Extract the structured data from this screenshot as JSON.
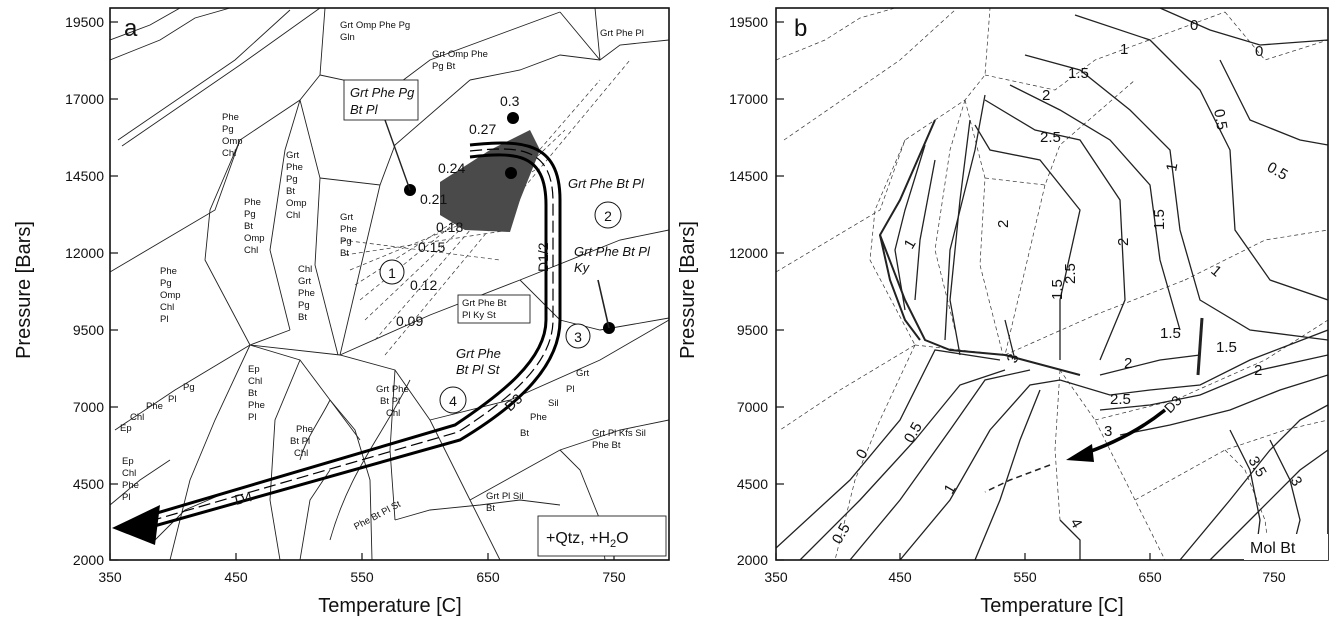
{
  "panels": [
    {
      "id": "a",
      "label": "a"
    },
    {
      "id": "b",
      "label": "b"
    }
  ],
  "axes": {
    "xlabel": "Temperature [C]",
    "ylabel": "Pressure [Bars]",
    "x_ticks": [
      "350",
      "450",
      "550",
      "650",
      "750"
    ],
    "y_ticks": [
      "19500",
      "17000",
      "14500",
      "12000",
      "9500",
      "7000",
      "4500",
      "2000"
    ]
  },
  "panel_a": {
    "fields": [
      "Grt Omp Phe Pg",
      "Gln",
      "Grt Omp Phe",
      "Pg Bt",
      "Grt Phe Pl",
      "Phe",
      "Pg",
      "Omp",
      "Chl",
      "Grt",
      "Phe",
      "Pg",
      "Bt",
      "Omp",
      "Chl",
      "Phe",
      "Pg",
      "Bt",
      "Omp",
      "Chl",
      "Grt",
      "Phe",
      "Pg",
      "Bt",
      "Chl",
      "Grt",
      "Phe",
      "Pg",
      "Bt",
      "Phe",
      "Pg",
      "Omp",
      "Chl",
      "Pl",
      "Ep",
      "Chl",
      "Bt",
      "Phe",
      "Pl",
      "Pg",
      "Pl",
      "Phe",
      "Chl",
      "Ep",
      "Ep",
      "Chl",
      "Phe",
      "Pl",
      "Phe",
      "Bt Pl",
      "Chl",
      "Grt Phe",
      "Bt Pl",
      "Chl",
      "Grt",
      "Pl",
      "Sil",
      "Phe",
      "Bt",
      "Grt Pl Kfs Sil",
      "Phe Bt",
      "Grt Pl Sil",
      "Bt",
      "Phe Bt Pl St"
    ],
    "callouts": [
      "Grt Phe Pg",
      "Bt Pl",
      "Grt Phe Bt Pl",
      "Grt Phe Bt Pl",
      "Ky",
      "Grt Phe",
      "Bt Pl St",
      "Grt Phe Bt",
      "Pl Ky St"
    ],
    "isopleths": [
      "0.3",
      "0.27",
      "0.24",
      "0.21",
      "0.18",
      "0.15",
      "0.12",
      "0.09"
    ],
    "field_numbers": [
      "1",
      "2",
      "3",
      "4"
    ],
    "path_labels": [
      "D1/2",
      "D3",
      "D4"
    ],
    "box_note": "+Qtz, +H",
    "box_note_sub": "2",
    "box_note_end": "O"
  },
  "panel_b": {
    "contours": [
      "0",
      "1",
      "1.5",
      "0.5",
      "2",
      "0",
      "0.5",
      "1",
      "1.5",
      "2",
      "2.5",
      "2.5",
      "2",
      "1.5",
      "1",
      "3",
      "1",
      "1.5",
      "1.5",
      "2",
      "2",
      "2.5",
      "3",
      "0",
      "0.5",
      "1",
      "0.5",
      "3",
      "3.5",
      "4"
    ],
    "path_label": "D3",
    "corner_note": "Mol Bt"
  },
  "colors": {
    "gray_field": "#4a4a4a",
    "line": "#111111"
  }
}
